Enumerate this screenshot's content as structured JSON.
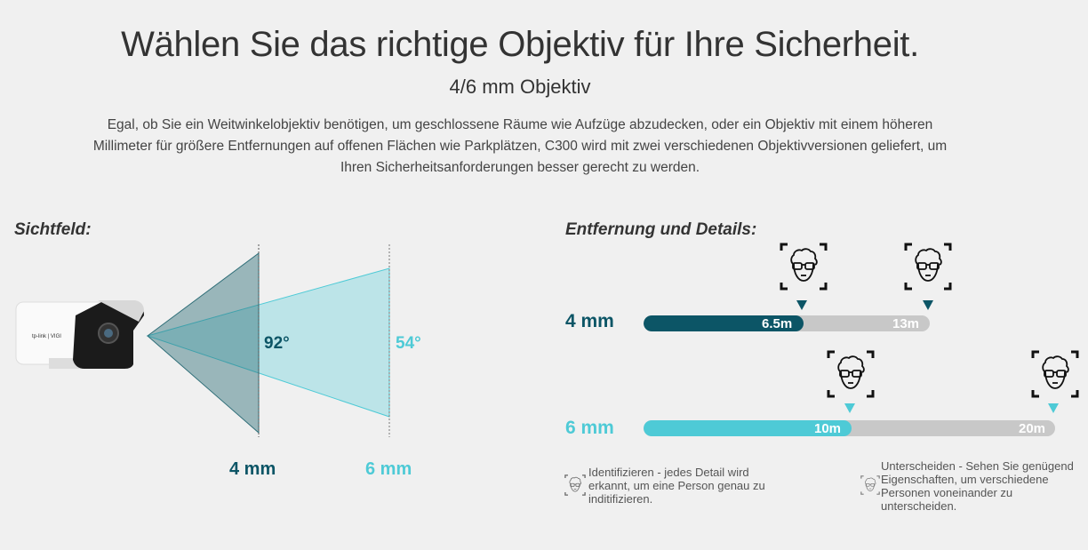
{
  "header": {
    "title": "Wählen Sie das richtige Objektiv für Ihre Sicherheit.",
    "subtitle": "4/6 mm Objektiv",
    "intro": "Egal, ob Sie ein Weitwinkelobjektiv benötigen, um geschlossene Räume wie Aufzüge abzudecken, oder ein Objektiv mit einem höheren Millimeter für größere Entfernungen auf offenen Flächen wie Parkplätzen, C300 wird mit zwei verschiedenen Objektivversionen geliefert, um Ihren Sicherheitsanforderungen besser gerecht zu werden."
  },
  "fov": {
    "heading": "Sichtfeld:",
    "camera_logo": "tp-link | VIGI",
    "lenses": [
      {
        "label": "4 mm",
        "angle": "92°",
        "color": "#0c5566"
      },
      {
        "label": "6 mm",
        "angle": "54°",
        "color": "#4ecad6"
      }
    ]
  },
  "distance": {
    "heading": "Entfernung und Details:",
    "rows": [
      {
        "label": "4 mm",
        "identify": "6.5m",
        "distinguish": "13m",
        "color": "#0c5566"
      },
      {
        "label": "6 mm",
        "identify": "10m",
        "distinguish": "20m",
        "color": "#4ecad6"
      }
    ],
    "legend": [
      {
        "icon": "face-identify-icon",
        "text": "Identifizieren -  jedes Detail wird erkannt, um eine Person genau zu inditifizieren."
      },
      {
        "icon": "face-distinguish-icon",
        "text": "Unterscheiden - Sehen Sie genügend Eigenschaften, um verschiedene Personen voneinander zu unterscheiden."
      }
    ]
  },
  "colors": {
    "background": "#f0f0f0",
    "bar_track": "#c8c8c8"
  }
}
